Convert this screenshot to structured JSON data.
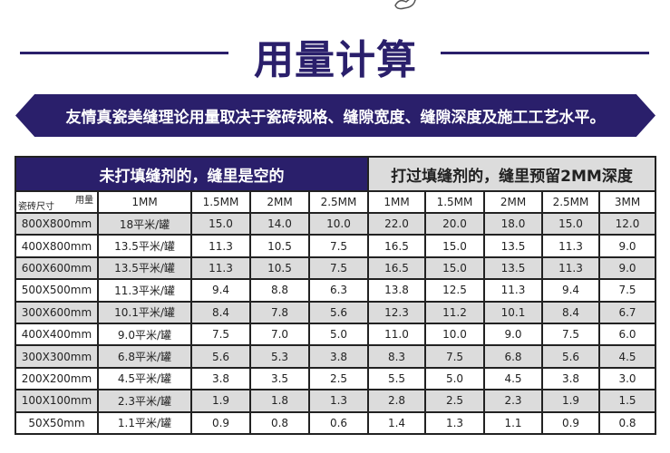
{
  "title": "用量计算",
  "banner": "友情真瓷美缝理论用量取决于瓷砖规格、缝隙宽度、缝隙深度及施工工艺水平。",
  "colors": {
    "navy": "#2a1f6b",
    "grey": "#dcdcdc"
  },
  "table": {
    "group_left": "未打填缝剂的，缝里是空的",
    "group_right": "打过填缝剂的，缝里预留2MM深度",
    "corner_top": "用量",
    "corner_bottom": "瓷砖尺寸",
    "columns": [
      "1MM",
      "1.5MM",
      "2MM",
      "2.5MM",
      "1MM",
      "1.5MM",
      "2MM",
      "2.5MM",
      "3MM"
    ],
    "rows": [
      [
        "800X800mm",
        "18平米/罐",
        "15.0",
        "14.0",
        "10.0",
        "22.0",
        "20.0",
        "18.0",
        "15.0",
        "12.0"
      ],
      [
        "400X800mm",
        "13.5平米/罐",
        "11.3",
        "10.5",
        "7.5",
        "16.5",
        "15.0",
        "13.5",
        "11.3",
        "9.0"
      ],
      [
        "600X600mm",
        "13.5平米/罐",
        "11.3",
        "10.5",
        "7.5",
        "16.5",
        "15.0",
        "13.5",
        "11.3",
        "9.0"
      ],
      [
        "500X500mm",
        "11.3平米/罐",
        "9.4",
        "8.8",
        "6.3",
        "13.8",
        "12.5",
        "11.3",
        "9.4",
        "7.5"
      ],
      [
        "300X600mm",
        "10.1平米/罐",
        "8.4",
        "7.8",
        "5.6",
        "12.3",
        "11.2",
        "10.1",
        "8.4",
        "6.7"
      ],
      [
        "400X400mm",
        "9.0平米/罐",
        "7.5",
        "7.0",
        "5.0",
        "11.0",
        "10.0",
        "9.0",
        "7.5",
        "6.0"
      ],
      [
        "300X300mm",
        "6.8平米/罐",
        "5.6",
        "5.3",
        "3.8",
        "8.3",
        "7.5",
        "6.8",
        "5.6",
        "4.5"
      ],
      [
        "200X200mm",
        "4.5平米/罐",
        "3.8",
        "3.5",
        "2.5",
        "5.5",
        "5.0",
        "4.5",
        "3.8",
        "3.0"
      ],
      [
        "100X100mm",
        "2.3平米/罐",
        "1.9",
        "1.8",
        "1.3",
        "2.8",
        "2.5",
        "2.3",
        "1.9",
        "1.5"
      ],
      [
        "50X50mm",
        "1.1平米/罐",
        "0.9",
        "0.8",
        "0.6",
        "1.4",
        "1.3",
        "1.1",
        "0.9",
        "0.8"
      ]
    ]
  }
}
